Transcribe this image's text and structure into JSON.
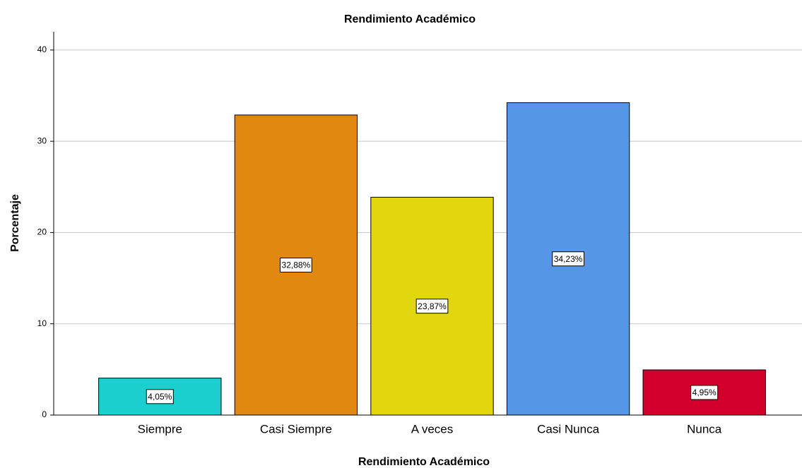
{
  "chart_data": {
    "type": "bar",
    "title": "Rendimiento Académico",
    "x_label": "Rendimiento Académico",
    "y_label": "Porcentaje",
    "categories": [
      "Siempre",
      "Casi Siempre",
      "A veces",
      "Casi Nunca",
      "Nunca"
    ],
    "values": [
      4.05,
      32.88,
      23.87,
      34.23,
      4.95
    ],
    "value_labels": [
      "4,05%",
      "32,88%",
      "23,87%",
      "34,23%",
      "4,95%"
    ],
    "colors": [
      "#1ccfcf",
      "#e0880f",
      "#e2d70f",
      "#5596e6",
      "#d4002c"
    ],
    "ylim": [
      0,
      42
    ],
    "yticks": [
      0,
      10,
      20,
      30,
      40
    ],
    "grid": true
  }
}
